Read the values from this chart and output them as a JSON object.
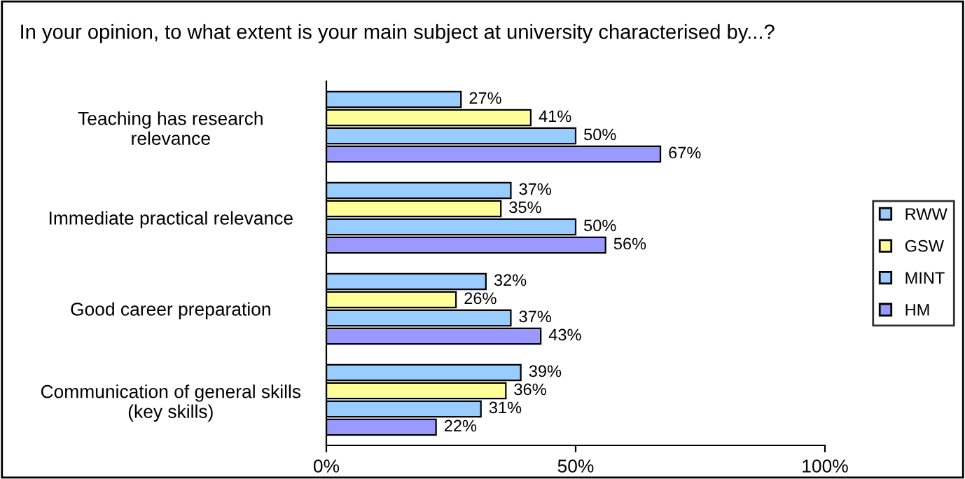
{
  "chart_data": {
    "type": "bar",
    "orientation": "horizontal",
    "title": "In your opinion, to what extent is your main subject at university characterised by...?",
    "categories": [
      "Teaching has research\nrelevance",
      "Immediate practical relevance",
      "Good career preparation",
      "Communication of general skills\n(key skills)"
    ],
    "series": [
      {
        "name": "RWW",
        "color": "#99ccff",
        "values": [
          27,
          37,
          32,
          39
        ],
        "value_labels": [
          "27%",
          "37%",
          "32%",
          "39%"
        ]
      },
      {
        "name": "GSW",
        "color": "#ffff99",
        "values": [
          41,
          35,
          26,
          36
        ],
        "value_labels": [
          "41%",
          "35%",
          "26%",
          "36%"
        ]
      },
      {
        "name": "MINT",
        "color": "#99ccff",
        "values": [
          50,
          50,
          37,
          31
        ],
        "value_labels": [
          "50%",
          "50%",
          "37%",
          "31%"
        ]
      },
      {
        "name": "HM",
        "color": "#9999ff",
        "values": [
          67,
          56,
          43,
          22
        ],
        "value_labels": [
          "67%",
          "56%",
          "43%",
          "22%"
        ]
      }
    ],
    "xlim": [
      0,
      100
    ],
    "xticks": [
      {
        "value": 0,
        "label": "0%"
      },
      {
        "value": 50,
        "label": "50%"
      },
      {
        "value": 100,
        "label": "100%"
      }
    ],
    "grid": false,
    "legend": "right"
  }
}
